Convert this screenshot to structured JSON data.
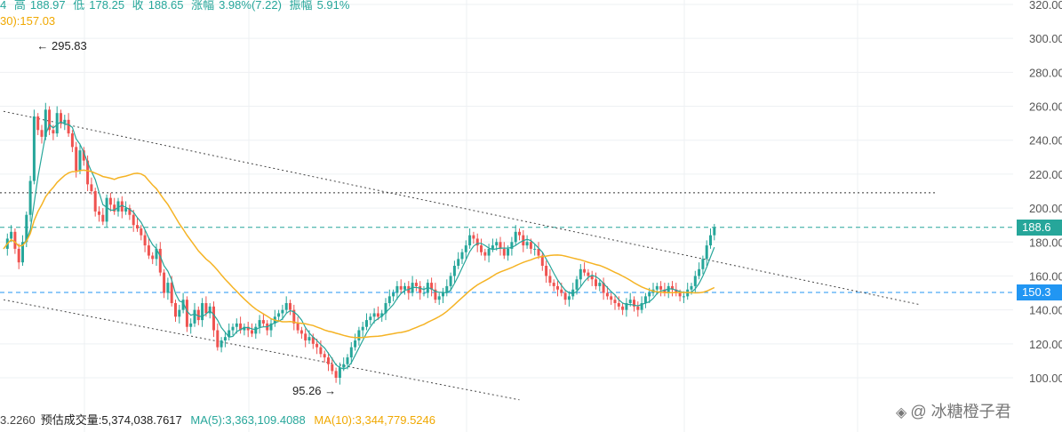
{
  "header": {
    "prefix": "4",
    "items": [
      {
        "label": "高",
        "value": "188.97"
      },
      {
        "label": "低",
        "value": "178.25"
      },
      {
        "label": "收",
        "value": "188.65"
      },
      {
        "label": "涨幅",
        "value": "3.98%(7.22)"
      },
      {
        "label": "振幅",
        "value": "5.91%"
      }
    ],
    "ma30": "30):157.03"
  },
  "volume_bar": {
    "first": "3.2260",
    "est_label": "预估成交量:",
    "est_value": "5,374,038.7617",
    "ma5_label": "MA(5):",
    "ma5_value": "3,363,109.4088",
    "ma10_label": "MA(10):",
    "ma10_value": "3,344,779.5246"
  },
  "price_tags": [
    {
      "text": "188.6",
      "value": 188.65,
      "color": "#26a69a"
    },
    {
      "text": "150.3",
      "value": 150.3,
      "color": "#2196f3"
    }
  ],
  "watermark": {
    "text": "@ 冰糖橙子君",
    "icon": "coin-icon"
  },
  "chart_data": {
    "type": "candlestick",
    "y_axis": {
      "min": 90,
      "max": 320,
      "ticks": [
        "320.00",
        "300.00",
        "280.00",
        "260.00",
        "240.00",
        "220.00",
        "200.00",
        "180.00",
        "160.00",
        "140.00",
        "120.00",
        "100.00"
      ],
      "tick_values": [
        320,
        300,
        280,
        260,
        240,
        220,
        200,
        180,
        160,
        140,
        120,
        100
      ]
    },
    "annotations": [
      {
        "text": "← 295.83",
        "value": 295.83,
        "index": 8
      },
      {
        "text": "95.26 →",
        "value": 95.26,
        "index": 90
      }
    ],
    "colors": {
      "up": "#26a69a",
      "down": "#ef5350",
      "ma5": "#26a69a",
      "ma30": "#f5b324"
    },
    "horizontal_levels": [
      {
        "value": 209,
        "style": "dotted",
        "color": "#333333"
      },
      {
        "value": 188.65,
        "style": "dashed",
        "color": "#26a69a"
      },
      {
        "value": 150.3,
        "style": "dashed",
        "color": "#2196f3"
      }
    ],
    "trendlines": [
      {
        "from": [
          0,
          257
        ],
        "to": [
          240,
          143
        ],
        "style": "dotted"
      },
      {
        "from": [
          0,
          146
        ],
        "to": [
          135,
          87
        ],
        "style": "dotted"
      }
    ],
    "closes": [
      176,
      182,
      186,
      176,
      168,
      180,
      196,
      216,
      254,
      246,
      242,
      258,
      246,
      244,
      256,
      250,
      252,
      244,
      236,
      222,
      234,
      228,
      214,
      210,
      198,
      196,
      192,
      206,
      202,
      198,
      204,
      198,
      200,
      196,
      190,
      188,
      184,
      178,
      172,
      170,
      176,
      162,
      150,
      156,
      144,
      136,
      140,
      146,
      130,
      132,
      140,
      134,
      144,
      138,
      142,
      128,
      118,
      122,
      124,
      128,
      130,
      132,
      128,
      130,
      128,
      126,
      130,
      134,
      132,
      128,
      132,
      136,
      138,
      140,
      144,
      140,
      132,
      128,
      126,
      122,
      124,
      120,
      118,
      114,
      112,
      108,
      104,
      100,
      106,
      108,
      112,
      118,
      122,
      128,
      130,
      134,
      136,
      138,
      136,
      138,
      144,
      148,
      150,
      154,
      152,
      154,
      150,
      156,
      154,
      150,
      150,
      156,
      152,
      146,
      148,
      150,
      154,
      160,
      166,
      170,
      174,
      178,
      184,
      182,
      178,
      174,
      172,
      176,
      178,
      180,
      176,
      172,
      176,
      180,
      186,
      184,
      178,
      180,
      176,
      176,
      172,
      166,
      160,
      156,
      154,
      152,
      150,
      146,
      148,
      152,
      158,
      164,
      162,
      160,
      158,
      154,
      156,
      150,
      148,
      146,
      144,
      142,
      140,
      144,
      146,
      142,
      140,
      144,
      148,
      150,
      152,
      154,
      152,
      150,
      154,
      152,
      150,
      148,
      148,
      152,
      154,
      160,
      164,
      170,
      178,
      184,
      188.65
    ],
    "closes_comment": "approximate daily closes read from the chart"
  }
}
